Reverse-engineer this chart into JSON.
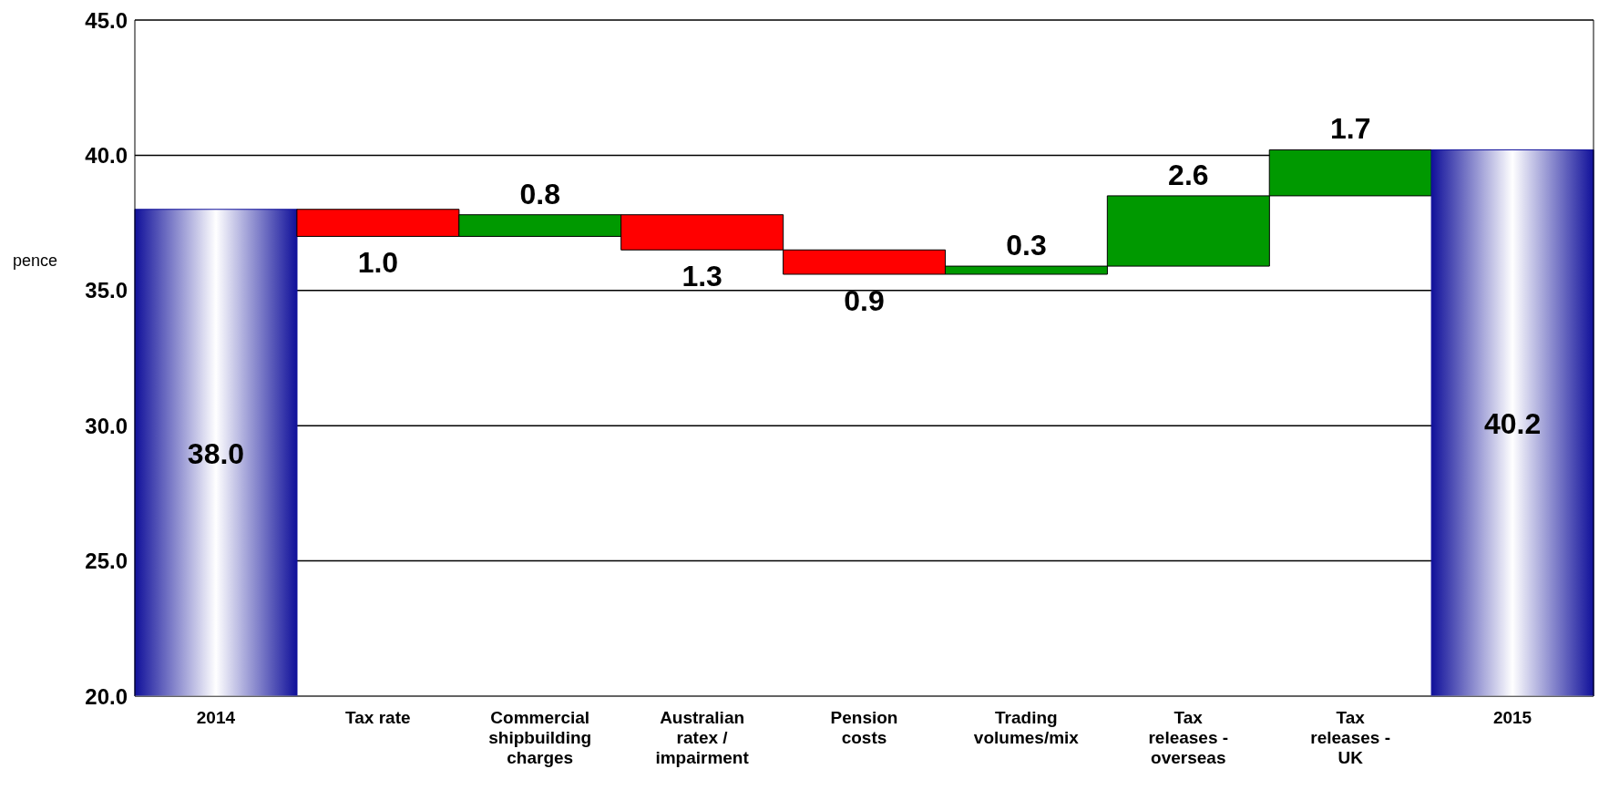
{
  "chart_data": {
    "type": "bar",
    "ylabel": "pence",
    "categories": [
      "2014",
      "Tax rate",
      "Commercial shipbuilding charges",
      "Australian ratex / impairment",
      "Pension costs",
      "Trading volumes/mix",
      "Tax releases - overseas",
      "Tax releases - UK",
      "2015"
    ],
    "values": [
      38.0,
      -1.0,
      0.8,
      -1.3,
      -0.9,
      0.3,
      2.6,
      1.7,
      40.2
    ],
    "base": [
      0,
      38.0,
      37.0,
      37.8,
      36.5,
      35.6,
      35.9,
      38.5,
      0
    ],
    "colors": [
      "#10109a",
      "#ff0000",
      "#009900",
      "#ff0000",
      "#ff0000",
      "#009900",
      "#009900",
      "#009900",
      "#10109a"
    ],
    "value_labels": [
      "38.0",
      "1.0",
      "0.8",
      "1.3",
      "0.9",
      "0.3",
      "2.6",
      "1.7",
      "40.2"
    ],
    "ylim": [
      20,
      45
    ],
    "yticks": [
      {
        "value": 20,
        "label": "20.0"
      },
      {
        "value": 25,
        "label": "25.0"
      },
      {
        "value": 30,
        "label": "30.0"
      },
      {
        "value": 35,
        "label": "35.0"
      },
      {
        "value": 40,
        "label": "40.0"
      },
      {
        "value": 45,
        "label": "45.0"
      }
    ],
    "grid": "y",
    "legend": false
  }
}
